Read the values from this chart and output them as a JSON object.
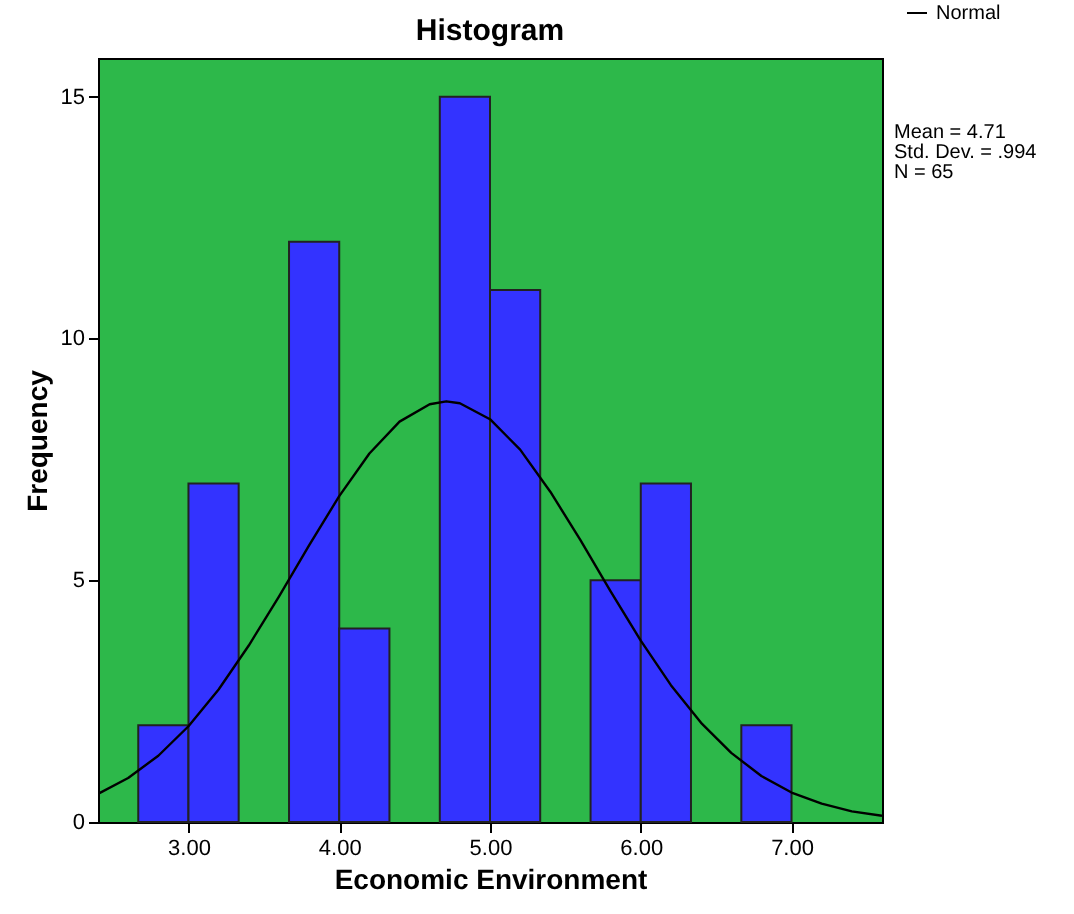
{
  "chart_data": {
    "type": "histogram",
    "title": "Histogram",
    "xlabel": "Economic Environment",
    "ylabel": "Frequency",
    "bins": [
      2.667,
      3.0,
      3.333,
      3.667,
      4.0,
      4.333,
      4.667,
      5.0,
      5.333,
      5.667,
      6.0,
      6.333,
      6.667,
      7.0
    ],
    "values": [
      2,
      7,
      0,
      12,
      4,
      0,
      15,
      11,
      0,
      5,
      7,
      0,
      2
    ],
    "color": "#3333ff",
    "series": [
      {
        "name": "Normal",
        "type": "line",
        "color": "#000000",
        "x": [
          2.4,
          2.6,
          2.8,
          3.0,
          3.2,
          3.4,
          3.6,
          3.8,
          4.0,
          4.2,
          4.4,
          4.6,
          4.71,
          4.8,
          5.0,
          5.2,
          5.4,
          5.6,
          5.8,
          6.0,
          6.2,
          6.4,
          6.6,
          6.8,
          7.0,
          7.2,
          7.4,
          7.6
        ],
        "values": [
          0.58,
          0.91,
          1.37,
          1.98,
          2.74,
          3.65,
          4.66,
          5.72,
          6.74,
          7.62,
          8.28,
          8.64,
          8.7,
          8.66,
          8.33,
          7.7,
          6.83,
          5.83,
          4.77,
          3.75,
          2.83,
          2.05,
          1.43,
          0.95,
          0.61,
          0.38,
          0.22,
          0.13
        ]
      }
    ],
    "xlim": [
      2.4,
      7.6
    ],
    "xticks": [
      {
        "value": 3,
        "label": "3.00"
      },
      {
        "value": 4,
        "label": "4.00"
      },
      {
        "value": 5,
        "label": "5.00"
      },
      {
        "value": 6,
        "label": "6.00"
      },
      {
        "value": 7,
        "label": "7.00"
      }
    ],
    "ylim": [
      0,
      15.8
    ],
    "yticks": [
      0,
      5,
      10,
      15
    ],
    "annotations": [
      "Mean = 4.71",
      "Std. Dev. = .994",
      "N = 65"
    ],
    "legend": "top right",
    "grid": false
  }
}
